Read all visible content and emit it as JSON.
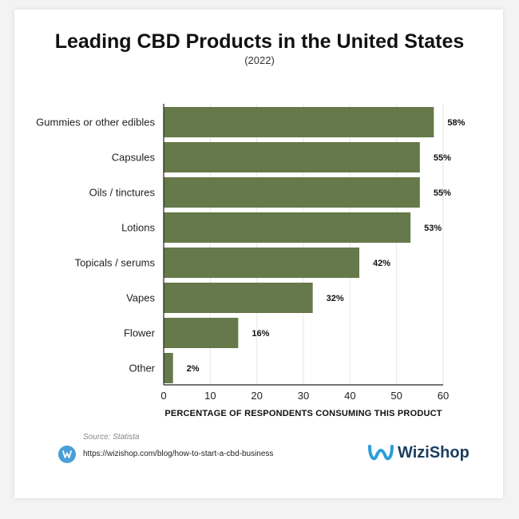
{
  "header": {
    "title": "Leading CBD Products in the United States",
    "subtitle": "(2022)"
  },
  "chart_data": {
    "type": "bar",
    "orientation": "horizontal",
    "categories": [
      "Gummies or other edibles",
      "Capsules",
      "Oils / tinctures",
      "Lotions",
      "Topicals / serums",
      "Vapes",
      "Flower",
      "Other"
    ],
    "values": [
      58,
      55,
      55,
      53,
      42,
      32,
      16,
      2
    ],
    "value_labels": [
      "58%",
      "55%",
      "55%",
      "53%",
      "42%",
      "32%",
      "16%",
      "2%"
    ],
    "xlabel": "PERCENTAGE OF RESPONDENTS CONSUMING THIS PRODUCT",
    "xlim": [
      0,
      60
    ],
    "xticks": [
      0,
      10,
      20,
      30,
      40,
      50,
      60
    ],
    "grid": true,
    "bar_color": "#66794a"
  },
  "footer": {
    "source": "Source: Statista",
    "url": "https://wizishop.com/blog/how-to-start-a-cbd-business",
    "link_icon": "wizishop-round-logo-icon",
    "brand": "WiziShop",
    "brand_icon": "wizishop-logo-icon"
  }
}
